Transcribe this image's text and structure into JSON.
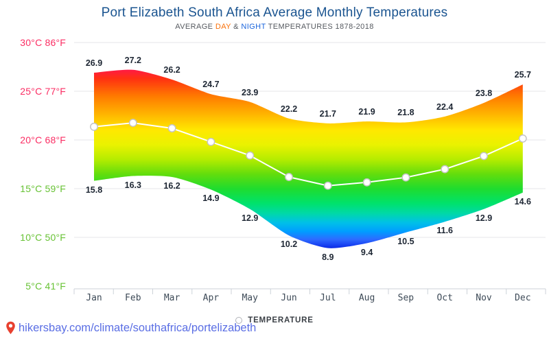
{
  "header": {
    "title": "Port Elizabeth South Africa Average Monthly Temperatures",
    "subtitle": {
      "average": "AVERAGE ",
      "day": "DAY",
      "amp": " & ",
      "night": "NIGHT",
      "rest": " TEMPERATURES 1878-2018"
    }
  },
  "chart_data": {
    "type": "area",
    "title": "Port Elizabeth South Africa Average Monthly Temperatures",
    "subtitle": "AVERAGE DAY & NIGHT TEMPERATURES 1878-2018",
    "categories": [
      "Jan",
      "Feb",
      "Mar",
      "Apr",
      "May",
      "Jun",
      "Jul",
      "Aug",
      "Sep",
      "Oct",
      "Nov",
      "Dec"
    ],
    "series": [
      {
        "name": "DAY",
        "values": [
          26.9,
          27.2,
          26.2,
          24.7,
          23.9,
          22.2,
          21.7,
          21.9,
          21.8,
          22.4,
          23.8,
          25.7
        ]
      },
      {
        "name": "NIGHT",
        "values": [
          15.8,
          16.3,
          16.2,
          14.9,
          12.9,
          10.2,
          8.9,
          9.4,
          10.5,
          11.6,
          12.9,
          14.6
        ]
      }
    ],
    "mean_line": {
      "style": "white line with circle markers, value = average of day and night"
    },
    "ylabel": "TEMPERATURE",
    "ylim": [
      5,
      31
    ],
    "grid": "horizontal only",
    "legend": {
      "label": "TEMPERATURE",
      "position": "bottom-center"
    },
    "y_ticks": [
      {
        "label": "30°C 86°F",
        "value": 30,
        "color": "#fb2d63"
      },
      {
        "label": "25°C 77°F",
        "value": 25,
        "color": "#fb2d63"
      },
      {
        "label": "20°C 68°F",
        "value": 20,
        "color": "#fb2d63"
      },
      {
        "label": "15°C 59°F",
        "value": 15,
        "color": "#67c234"
      },
      {
        "label": "10°C 50°F",
        "value": 10,
        "color": "#67c234"
      },
      {
        "label": "5°C 41°F",
        "value": 5,
        "color": "#67c234"
      }
    ],
    "gradient_stops": [
      {
        "temp": 27.2,
        "color": "#ff1a44"
      },
      {
        "temp": 26.3,
        "color": "#ff3111"
      },
      {
        "temp": 24.5,
        "color": "#ff7a00"
      },
      {
        "temp": 22.5,
        "color": "#ffb900"
      },
      {
        "temp": 21.0,
        "color": "#ffe800"
      },
      {
        "temp": 19.5,
        "color": "#eaf200"
      },
      {
        "temp": 18.0,
        "color": "#b5ec00"
      },
      {
        "temp": 16.5,
        "color": "#63dd0c"
      },
      {
        "temp": 15.0,
        "color": "#1fdc2e"
      },
      {
        "temp": 13.5,
        "color": "#00e26b"
      },
      {
        "temp": 12.5,
        "color": "#00d9a5"
      },
      {
        "temp": 11.5,
        "color": "#00c0e8"
      },
      {
        "temp": 10.6,
        "color": "#009dff"
      },
      {
        "temp": 9.8,
        "color": "#2e6bff"
      },
      {
        "temp": 9.2,
        "color": "#1741f2"
      },
      {
        "temp": 8.9,
        "color": "#0c2be4"
      }
    ]
  },
  "footer": {
    "url": "hikersbay.com/climate/southafrica/portelizabeth"
  },
  "colors": {
    "title": "#1a5490",
    "subtitle_gray": "#55595f",
    "day_accent": "#f96f07",
    "night_accent": "#1a64dc",
    "warm_tick": "#fb2d63",
    "cool_tick": "#67c234",
    "value_label": "#1d2633",
    "gridline": "#e4e6e9",
    "axis": "#ccd2d8",
    "link": "#5a6ee4",
    "pin": "#e8402f",
    "mean_line": "#ffffff",
    "marker_stroke": "#c4c4c4"
  }
}
